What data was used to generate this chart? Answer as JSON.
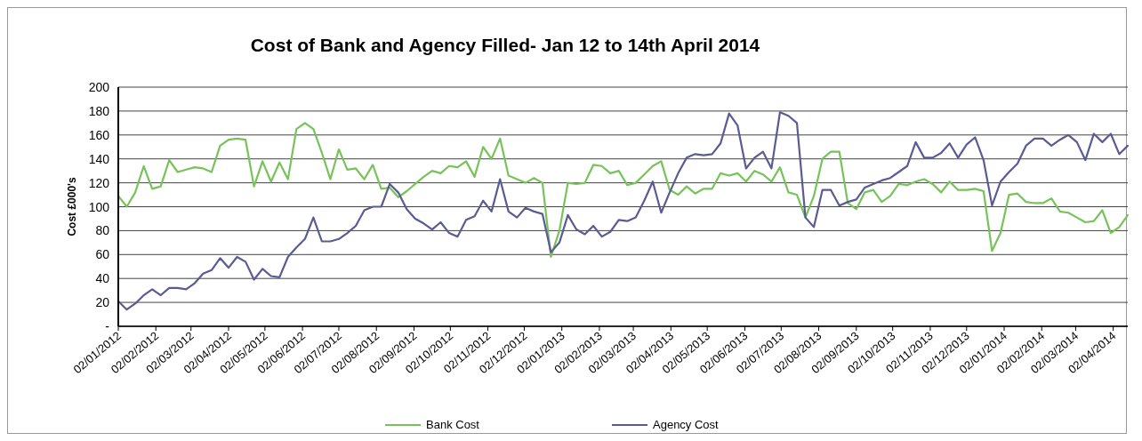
{
  "chart_data": {
    "type": "line",
    "title": "Cost of Bank and Agency  Filled- Jan 12 to 14th April 2014",
    "ylabel": "Cost £000's",
    "x": [
      "2012-01-02",
      "2012-01-09",
      "2012-01-16",
      "2012-01-23",
      "2012-01-30",
      "2012-02-06",
      "2012-02-13",
      "2012-02-20",
      "2012-02-27",
      "2012-03-05",
      "2012-03-12",
      "2012-03-19",
      "2012-03-26",
      "2012-04-02",
      "2012-04-09",
      "2012-04-16",
      "2012-04-23",
      "2012-04-30",
      "2012-05-07",
      "2012-05-14",
      "2012-05-21",
      "2012-05-28",
      "2012-06-04",
      "2012-06-11",
      "2012-06-18",
      "2012-06-25",
      "2012-07-02",
      "2012-07-09",
      "2012-07-16",
      "2012-07-23",
      "2012-07-30",
      "2012-08-06",
      "2012-08-13",
      "2012-08-20",
      "2012-08-27",
      "2012-09-03",
      "2012-09-10",
      "2012-09-17",
      "2012-09-24",
      "2012-10-01",
      "2012-10-08",
      "2012-10-15",
      "2012-10-22",
      "2012-10-29",
      "2012-11-05",
      "2012-11-12",
      "2012-11-19",
      "2012-11-26",
      "2012-12-03",
      "2012-12-10",
      "2012-12-17",
      "2012-12-24",
      "2012-12-31",
      "2013-01-07",
      "2013-01-14",
      "2013-01-21",
      "2013-01-28",
      "2013-02-04",
      "2013-02-11",
      "2013-02-18",
      "2013-02-25",
      "2013-03-04",
      "2013-03-11",
      "2013-03-18",
      "2013-03-25",
      "2013-04-01",
      "2013-04-08",
      "2013-04-15",
      "2013-04-22",
      "2013-04-29",
      "2013-05-06",
      "2013-05-13",
      "2013-05-20",
      "2013-05-27",
      "2013-06-03",
      "2013-06-10",
      "2013-06-17",
      "2013-06-24",
      "2013-07-01",
      "2013-07-08",
      "2013-07-15",
      "2013-07-22",
      "2013-07-29",
      "2013-08-05",
      "2013-08-12",
      "2013-08-19",
      "2013-08-26",
      "2013-09-02",
      "2013-09-09",
      "2013-09-16",
      "2013-09-23",
      "2013-09-30",
      "2013-10-07",
      "2013-10-14",
      "2013-10-21",
      "2013-10-28",
      "2013-11-04",
      "2013-11-11",
      "2013-11-18",
      "2013-11-25",
      "2013-12-02",
      "2013-12-09",
      "2013-12-16",
      "2013-12-23",
      "2013-12-30",
      "2014-01-06",
      "2014-01-13",
      "2014-01-20",
      "2014-01-27",
      "2014-02-03",
      "2014-02-10",
      "2014-02-17",
      "2014-02-24",
      "2014-03-03",
      "2014-03-10",
      "2014-03-17",
      "2014-03-24",
      "2014-03-31",
      "2014-04-07",
      "2014-04-14"
    ],
    "series": [
      {
        "name": "Bank Cost",
        "color": "#77c35a",
        "values": [
          109,
          100,
          112,
          134,
          115,
          117,
          139,
          129,
          131,
          133,
          132,
          129,
          151,
          156,
          157,
          156,
          117,
          138,
          121,
          137,
          123,
          165,
          170,
          165,
          145,
          123,
          148,
          131,
          132,
          123,
          135,
          115,
          116,
          108,
          113,
          119,
          125,
          130,
          128,
          134,
          133,
          138,
          125,
          150,
          140,
          157,
          126,
          123,
          120,
          124,
          120,
          58,
          80,
          120,
          119,
          120,
          135,
          134,
          128,
          130,
          118,
          120,
          127,
          134,
          138,
          114,
          110,
          117,
          111,
          115,
          115,
          128,
          126,
          128,
          121,
          130,
          127,
          121,
          133,
          112,
          110,
          91,
          109,
          140,
          146,
          146,
          103,
          98,
          112,
          114,
          104,
          109,
          119,
          118,
          121,
          123,
          119,
          112,
          121,
          114,
          114,
          115,
          113,
          63,
          78,
          110,
          111,
          104,
          103,
          103,
          107,
          96,
          95,
          91,
          87,
          88,
          97,
          78,
          83,
          93
        ]
      },
      {
        "name": "Agency Cost",
        "color": "#5b5b94",
        "values": [
          21,
          14,
          19,
          26,
          31,
          26,
          32,
          32,
          31,
          36,
          44,
          47,
          57,
          49,
          58,
          54,
          39,
          48,
          42,
          41,
          58,
          66,
          73,
          91,
          71,
          71,
          73,
          78,
          84,
          97,
          100,
          100,
          119,
          112,
          98,
          90,
          86,
          81,
          87,
          78,
          75,
          89,
          92,
          105,
          96,
          123,
          96,
          91,
          99,
          96,
          94,
          62,
          70,
          93,
          81,
          77,
          84,
          75,
          79,
          89,
          88,
          91,
          105,
          121,
          95,
          112,
          128,
          141,
          144,
          143,
          144,
          153,
          178,
          168,
          132,
          141,
          146,
          132,
          179,
          176,
          170,
          91,
          83,
          114,
          114,
          101,
          104,
          106,
          116,
          119,
          122,
          124,
          129,
          134,
          154,
          141,
          141,
          145,
          153,
          141,
          152,
          158,
          139,
          101,
          121,
          129,
          136,
          151,
          157,
          157,
          151,
          156,
          160,
          154,
          139,
          161,
          154,
          161,
          144,
          151
        ]
      }
    ],
    "xlim": [
      "2012-01-02",
      "2014-04-14"
    ],
    "xticks": [
      {
        "value": "2012-01-02",
        "label": "02/01/2012"
      },
      {
        "value": "2012-02-02",
        "label": "02/02/2012"
      },
      {
        "value": "2012-03-02",
        "label": "02/03/2012"
      },
      {
        "value": "2012-04-02",
        "label": "02/04/2012"
      },
      {
        "value": "2012-05-02",
        "label": "02/05/2012"
      },
      {
        "value": "2012-06-02",
        "label": "02/06/2012"
      },
      {
        "value": "2012-07-02",
        "label": "02/07/2012"
      },
      {
        "value": "2012-08-02",
        "label": "02/08/2012"
      },
      {
        "value": "2012-09-02",
        "label": "02/09/2012"
      },
      {
        "value": "2012-10-02",
        "label": "02/10/2012"
      },
      {
        "value": "2012-11-02",
        "label": "02/11/2012"
      },
      {
        "value": "2012-12-02",
        "label": "02/12/2012"
      },
      {
        "value": "2013-01-02",
        "label": "02/01/2013"
      },
      {
        "value": "2013-02-02",
        "label": "02/02/2013"
      },
      {
        "value": "2013-03-02",
        "label": "02/03/2013"
      },
      {
        "value": "2013-04-02",
        "label": "02/04/2013"
      },
      {
        "value": "2013-05-02",
        "label": "02/05/2013"
      },
      {
        "value": "2013-06-02",
        "label": "02/06/2013"
      },
      {
        "value": "2013-07-02",
        "label": "02/07/2013"
      },
      {
        "value": "2013-08-02",
        "label": "02/08/2013"
      },
      {
        "value": "2013-09-02",
        "label": "02/09/2013"
      },
      {
        "value": "2013-10-02",
        "label": "02/10/2013"
      },
      {
        "value": "2013-11-02",
        "label": "02/11/2013"
      },
      {
        "value": "2013-12-02",
        "label": "02/12/2013"
      },
      {
        "value": "2014-01-02",
        "label": "02/01/2014"
      },
      {
        "value": "2014-02-02",
        "label": "02/02/2014"
      },
      {
        "value": "2014-03-02",
        "label": "02/03/2014"
      },
      {
        "value": "2014-04-02",
        "label": "02/04/2014"
      }
    ],
    "ylim": [
      0,
      200
    ],
    "yticks": [
      {
        "value": 0,
        "label": "-"
      },
      20,
      40,
      60,
      80,
      100,
      120,
      140,
      160,
      180,
      200
    ],
    "grid": "y",
    "legend": "bottom",
    "marker": "none",
    "line_style": "solid"
  }
}
